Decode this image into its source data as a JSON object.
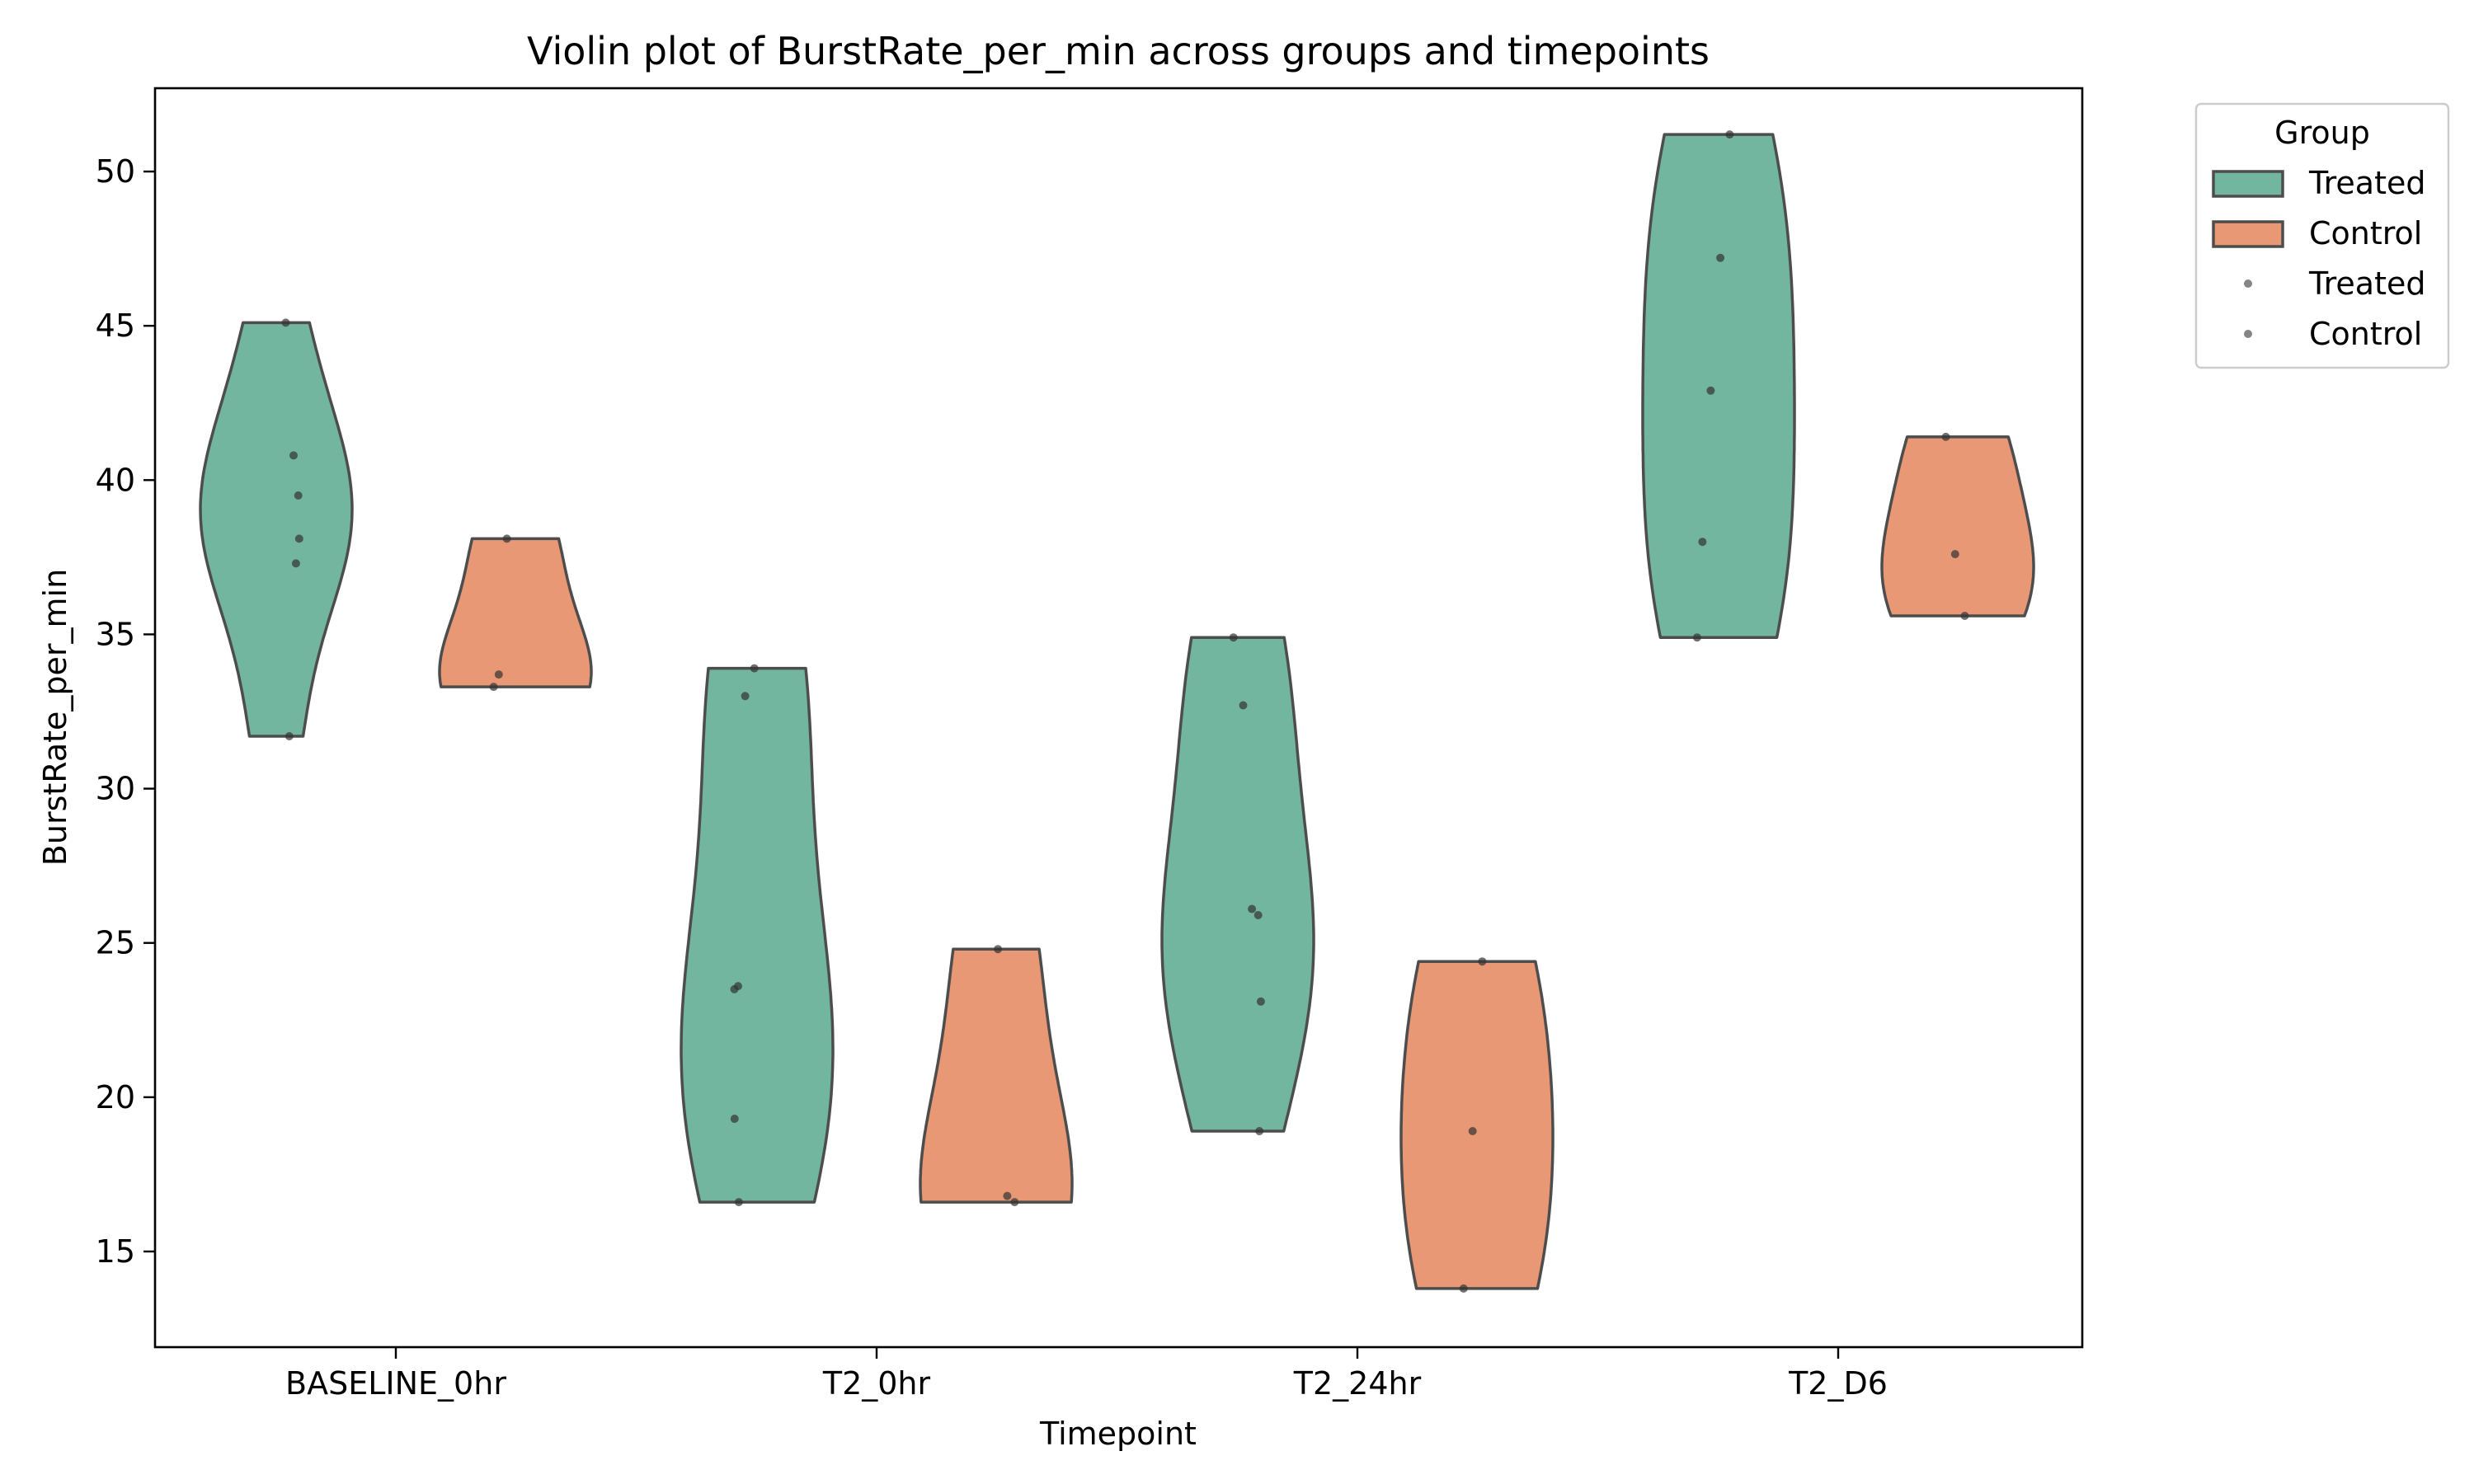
{
  "chart_data": {
    "type": "violin",
    "title": "Violin plot of BurstRate_per_min across groups and timepoints",
    "xlabel": "Timepoint",
    "ylabel": "BurstRate_per_min",
    "categories": [
      "BASELINE_0hr",
      "T2_0hr",
      "T2_24hr",
      "T2_D6"
    ],
    "ylim": [
      11.9,
      52.7
    ],
    "yticks": [
      15,
      20,
      25,
      30,
      35,
      40,
      45,
      50
    ],
    "grid": false,
    "legend": {
      "title": "Group",
      "placement": "outside upper right",
      "entries": [
        {
          "label": "Treated",
          "kind": "patch",
          "color": "#73b6a0"
        },
        {
          "label": "Control",
          "kind": "patch",
          "color": "#e89875"
        },
        {
          "label": "Treated",
          "kind": "point",
          "color": "#808080"
        },
        {
          "label": "Control",
          "kind": "point",
          "color": "#808080"
        }
      ]
    },
    "series": [
      {
        "name": "Treated",
        "color": "#73b6a0",
        "values": [
          [
            45.1,
            40.8,
            39.5,
            38.1,
            37.3,
            31.7
          ],
          [
            33.9,
            33.0,
            23.6,
            23.5,
            19.3,
            16.6
          ],
          [
            34.9,
            32.7,
            26.1,
            25.9,
            23.1,
            18.9
          ],
          [
            51.2,
            47.2,
            42.9,
            38.0,
            34.9
          ]
        ]
      },
      {
        "name": "Control",
        "color": "#e89875",
        "values": [
          [
            38.1,
            33.7,
            33.3
          ],
          [
            24.8,
            16.8,
            16.6
          ],
          [
            24.4,
            18.9,
            13.8
          ],
          [
            41.4,
            37.6,
            35.6
          ]
        ]
      }
    ]
  }
}
